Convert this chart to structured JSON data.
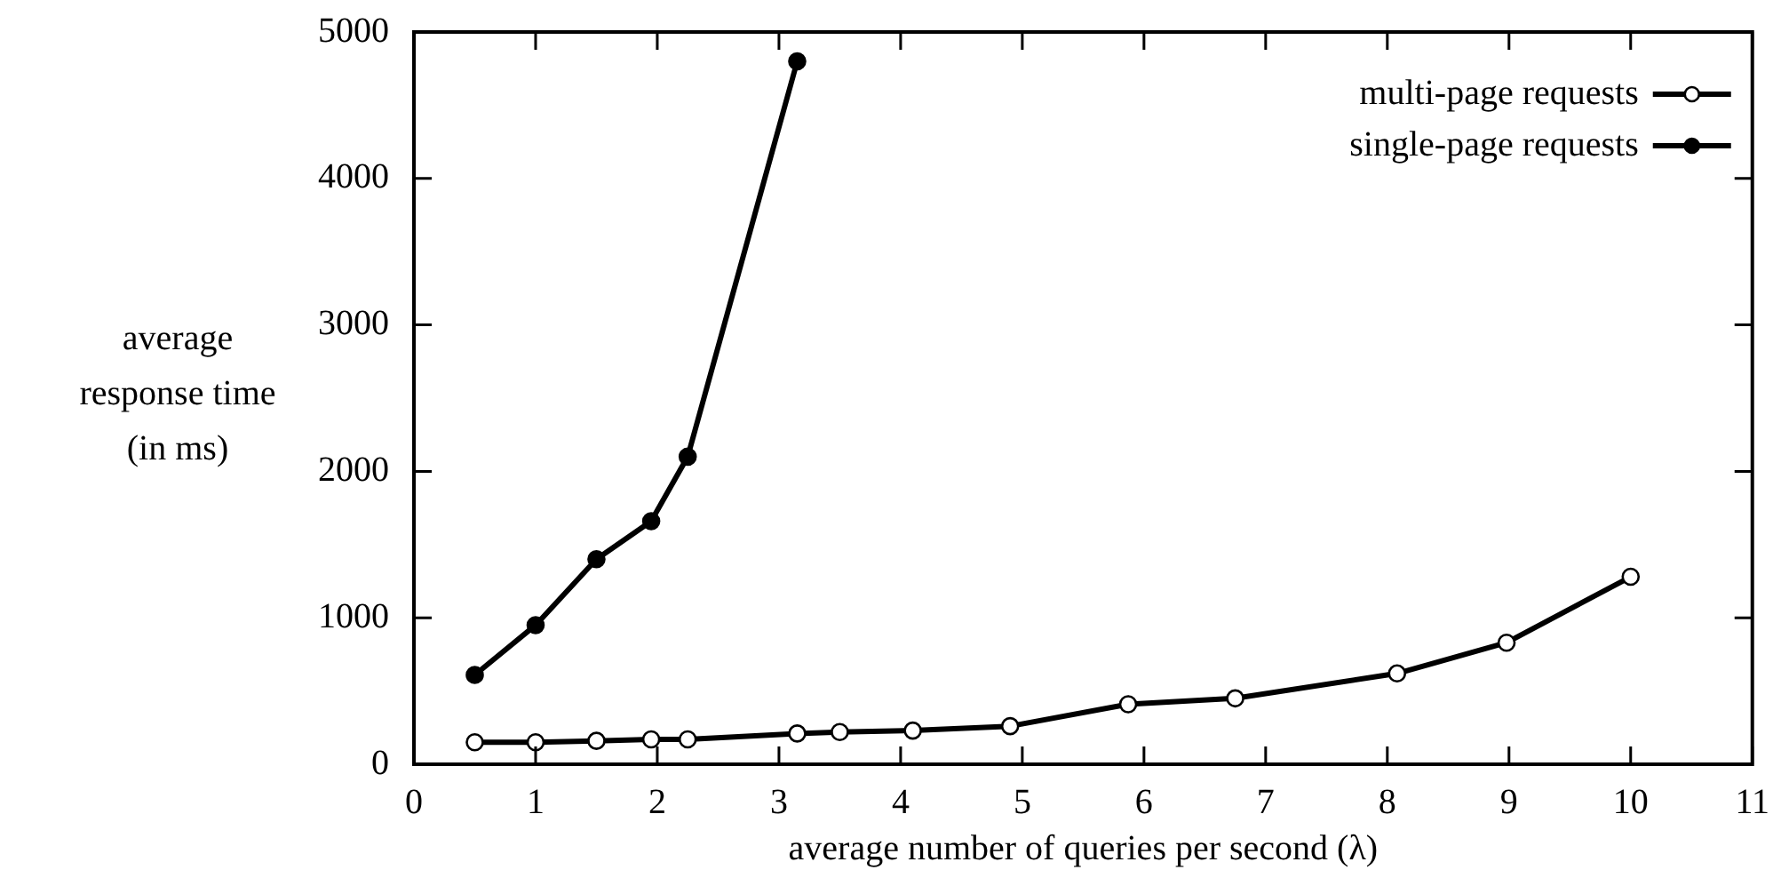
{
  "chart_data": {
    "type": "line",
    "xlabel": "average number of queries per second (λ)",
    "ylabel": "average\nresponse time\n(in ms)",
    "xlim": [
      0,
      11
    ],
    "xticks": [
      0,
      1,
      2,
      3,
      4,
      5,
      6,
      7,
      8,
      9,
      10,
      11
    ],
    "ylim": [
      0,
      5000
    ],
    "yticks": [
      0,
      1000,
      2000,
      3000,
      4000,
      5000
    ],
    "grid": false,
    "legend": "top right",
    "line_style": "solid",
    "series": [
      {
        "name": "multi-page requests",
        "color": "#000000",
        "marker": "open-circle",
        "x": [
          0.5,
          1,
          1.5,
          1.95,
          2.25,
          3.15,
          3.5,
          4.1,
          4.9,
          5.87,
          6.75,
          8.08,
          8.98,
          10
        ],
        "values": [
          150,
          150,
          160,
          170,
          170,
          210,
          220,
          230,
          260,
          410,
          450,
          620,
          830,
          1280
        ]
      },
      {
        "name": "single-page requests",
        "color": "#000000",
        "marker": "circle",
        "x": [
          0.5,
          1,
          1.5,
          1.95,
          2.25,
          3.15
        ],
        "values": [
          610,
          950,
          1400,
          1660,
          2100,
          4800
        ]
      }
    ]
  }
}
